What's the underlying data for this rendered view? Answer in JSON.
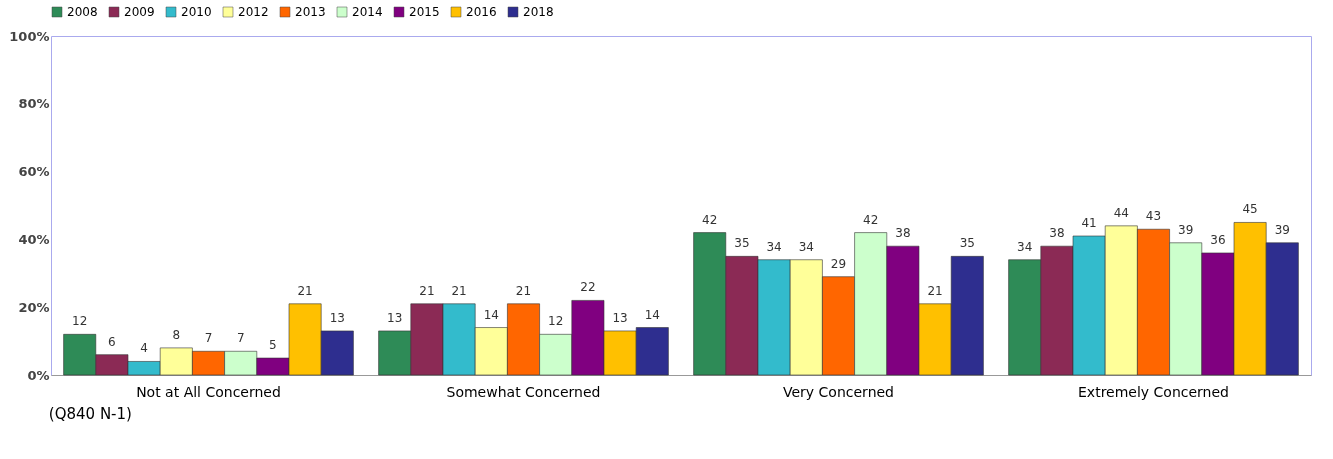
{
  "chart_data": {
    "type": "bar",
    "categories": [
      "Not at All Concerned",
      "Somewhat Concerned",
      "Very Concerned",
      "Extremely Concerned"
    ],
    "series": [
      {
        "name": "2008",
        "color": "#2e8b57",
        "values": [
          12,
          13,
          42,
          34
        ]
      },
      {
        "name": "2009",
        "color": "#8b2a55",
        "values": [
          6,
          21,
          35,
          38
        ]
      },
      {
        "name": "2010",
        "color": "#33bbcc",
        "values": [
          4,
          21,
          34,
          41
        ]
      },
      {
        "name": "2012",
        "color": "#ffff99",
        "values": [
          8,
          14,
          34,
          44
        ]
      },
      {
        "name": "2013",
        "color": "#ff6600",
        "values": [
          7,
          21,
          29,
          43
        ]
      },
      {
        "name": "2014",
        "color": "#ccffcc",
        "values": [
          7,
          12,
          42,
          39
        ]
      },
      {
        "name": "2015",
        "color": "#800080",
        "values": [
          5,
          22,
          38,
          36
        ]
      },
      {
        "name": "2016",
        "color": "#ffc000",
        "values": [
          21,
          13,
          21,
          45
        ]
      },
      {
        "name": "2018",
        "color": "#2e2e8f",
        "values": [
          13,
          14,
          35,
          39
        ]
      }
    ],
    "ylim": [
      0,
      100
    ],
    "yticks": [
      {
        "value": 0,
        "label": "0%"
      },
      {
        "value": 20,
        "label": "20%"
      },
      {
        "value": 40,
        "label": "40%"
      },
      {
        "value": 60,
        "label": "60%"
      },
      {
        "value": 80,
        "label": "80%"
      },
      {
        "value": 100,
        "label": "100%"
      }
    ],
    "data_labels": true,
    "legend": "top",
    "annotations": [
      "(Q840 N-1)"
    ]
  }
}
